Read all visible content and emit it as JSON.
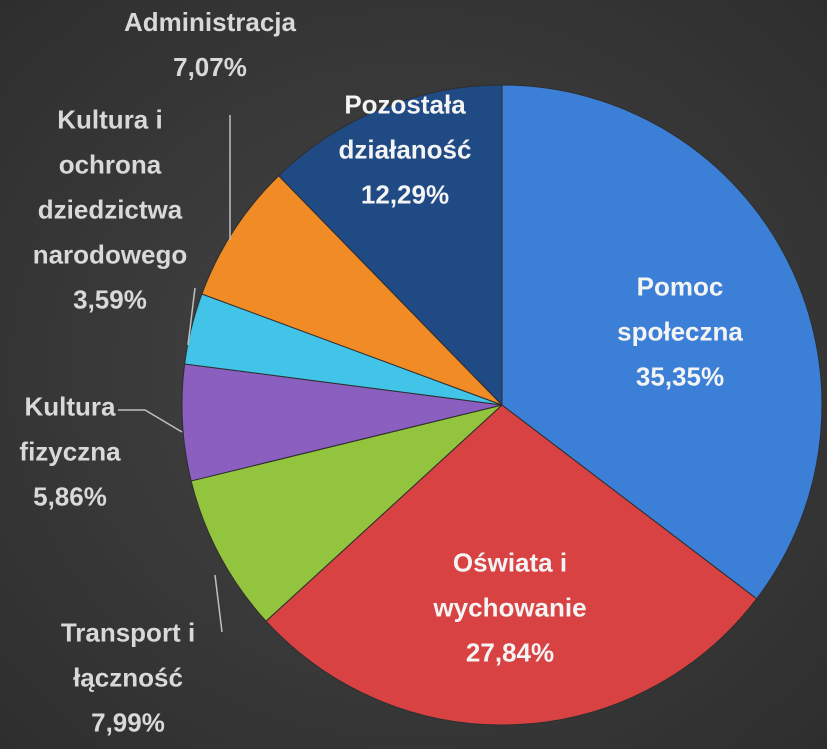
{
  "chart_data": {
    "type": "pie",
    "categories": [
      "Pomoc społeczna",
      "Oświata i wychowanie",
      "Transport i łączność",
      "Kultura fizyczna",
      "Kultura i ochrona dziedzictwa narodowego",
      "Administracja",
      "Pozostała działaność"
    ],
    "values": [
      35.35,
      27.84,
      7.99,
      5.86,
      3.59,
      7.07,
      12.29
    ],
    "value_labels": [
      "35,35%",
      "27,84%",
      "7,99%",
      "5,86%",
      "3,59%",
      "7,07%",
      "12,29%"
    ],
    "colors": [
      "#3b7fd6",
      "#d84242",
      "#92c43e",
      "#8a5fc0",
      "#41c4e8",
      "#f08b25",
      "#1f4a84"
    ]
  }
}
